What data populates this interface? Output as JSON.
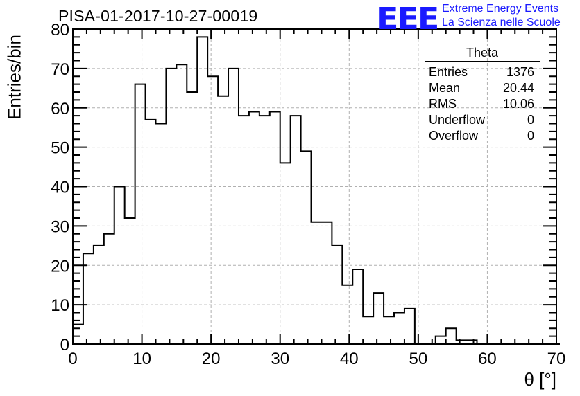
{
  "header": {
    "run_title": "PISA-01-2017-10-27-00019",
    "logo": "EEE",
    "tagline_1": "Extreme Energy Events",
    "tagline_2": "La Scienza nelle Scuole"
  },
  "colors": {
    "logo": "#1a1aff",
    "line": "#000000",
    "grid": "#b0b0b0"
  },
  "stats": {
    "title": "Theta",
    "rows": [
      {
        "label": "Entries",
        "value": "1376"
      },
      {
        "label": "Mean",
        "value": "20.44"
      },
      {
        "label": "RMS",
        "value": "10.06"
      },
      {
        "label": "Underflow",
        "value": "0"
      },
      {
        "label": "Overflow",
        "value": "0"
      }
    ]
  },
  "chart_data": {
    "type": "histogram",
    "title": "PISA-01-2017-10-27-00019",
    "xlabel": "θ [°]",
    "ylabel": "Entries/bin",
    "xlim": [
      0,
      70
    ],
    "ylim": [
      0,
      80
    ],
    "xticks": [
      0,
      10,
      20,
      30,
      40,
      50,
      60,
      70
    ],
    "yticks": [
      0,
      10,
      20,
      30,
      40,
      50,
      60,
      70,
      80
    ],
    "grid": true,
    "bin_width": 1.5,
    "bin_start": 0,
    "values": [
      5,
      23,
      25,
      28,
      40,
      32,
      66,
      57,
      56,
      70,
      71,
      64,
      78,
      68,
      63,
      70,
      58,
      59,
      58,
      59,
      46,
      58,
      49,
      31,
      31,
      25,
      15,
      19,
      7,
      13,
      7,
      8,
      9,
      0,
      0,
      2,
      4,
      1,
      1,
      0,
      0,
      0,
      0,
      0,
      0,
      0,
      0
    ]
  }
}
